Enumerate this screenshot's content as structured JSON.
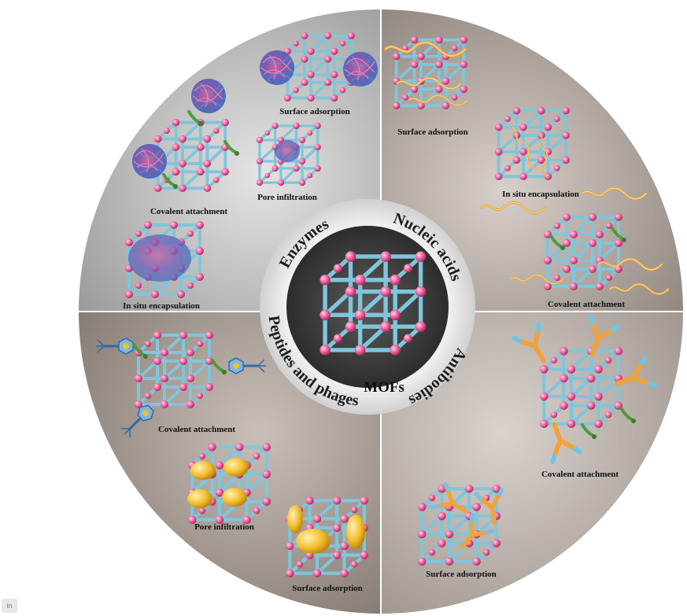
{
  "center": {
    "label": "MOFs"
  },
  "ring": {
    "enzymes": "Enzymes",
    "nucleic_acids": "Nucleic acids",
    "antibodies": "Antibodies",
    "peptides_phages": "Peptides and phages"
  },
  "labels": {
    "enzymes_surface_adsorption": "Surface adsorption",
    "enzymes_pore_infiltration": "Pore infiltration",
    "enzymes_covalent_attachment": "Covalent attachment",
    "enzymes_in_situ_encapsulation": "In situ encapsulation",
    "nucleic_surface_adsorption": "Surface adsorption",
    "nucleic_in_situ_encapsulation": "In situ encapsulation",
    "nucleic_covalent_attachment": "Covalent attachment",
    "peptides_covalent_attachment": "Covalent attachment",
    "peptides_pore_infiltration": "Pore infiltration",
    "peptides_surface_adsorption": "Surface adsorption",
    "antibodies_covalent_attachment": "Covalent attachment",
    "antibodies_surface_adsorption": "Surface adsorption"
  },
  "corner_badge": "in",
  "colors": {
    "frame": "#7fc6dc",
    "node": "#e8508f",
    "protein": "#8a5fb5",
    "dna": "#e8a640",
    "linker": "#4f9a3a",
    "antibody": "#f2a23a",
    "ellipsoid": "#f0b728"
  },
  "icons": [
    "mof-cube",
    "enzyme-blob",
    "dna-strand",
    "antibody-y",
    "phage",
    "linker"
  ]
}
